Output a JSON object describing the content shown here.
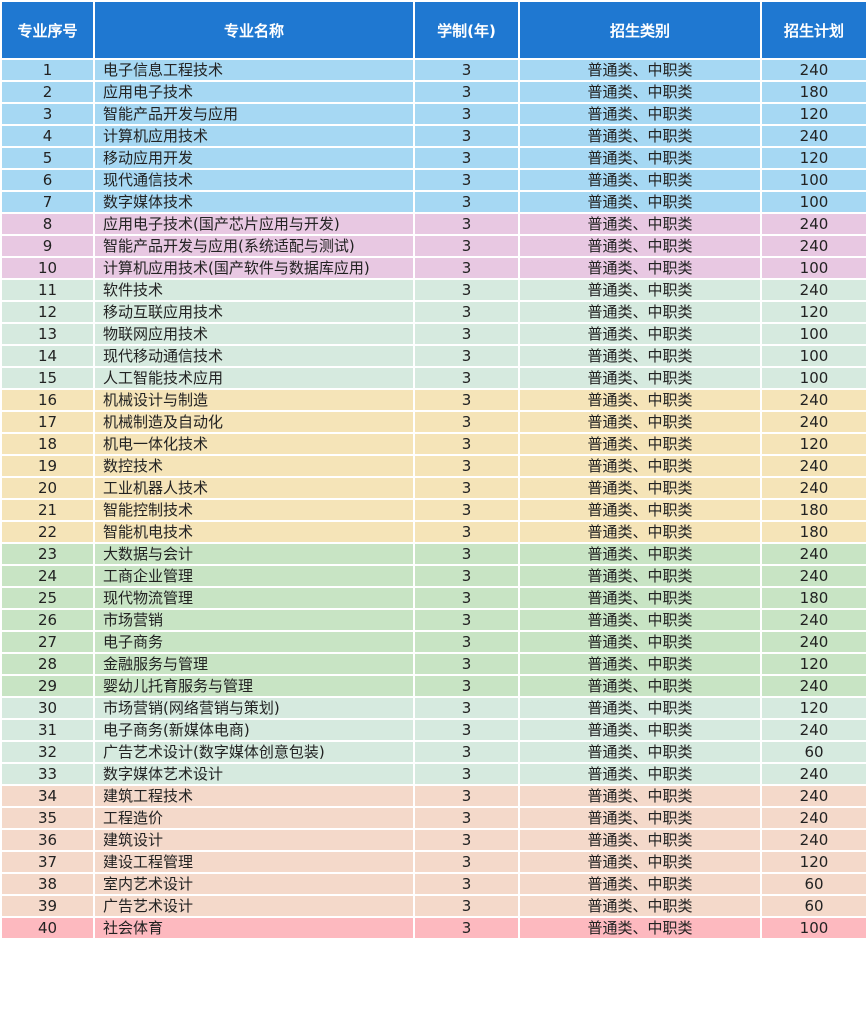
{
  "headers": [
    "专业序号",
    "专业名称",
    "学制(年)",
    "招生类别",
    "招生计划"
  ],
  "group_colors": [
    "#a6d8f3",
    "#e8c8e2",
    "#d6eadf",
    "#f5e4b8",
    "#c8e4c4",
    "#d6eadf",
    "#f4d9ca",
    "#fdb9bf"
  ],
  "rows": [
    [
      "1",
      "电子信息工程技术",
      "3",
      "普通类、中职类",
      "240",
      0
    ],
    [
      "2",
      "应用电子技术",
      "3",
      "普通类、中职类",
      "180",
      0
    ],
    [
      "3",
      "智能产品开发与应用",
      "3",
      "普通类、中职类",
      "120",
      0
    ],
    [
      "4",
      "计算机应用技术",
      "3",
      "普通类、中职类",
      "240",
      0
    ],
    [
      "5",
      "移动应用开发",
      "3",
      "普通类、中职类",
      "120",
      0
    ],
    [
      "6",
      "现代通信技术",
      "3",
      "普通类、中职类",
      "100",
      0
    ],
    [
      "7",
      "数字媒体技术",
      "3",
      "普通类、中职类",
      "100",
      0
    ],
    [
      "8",
      "应用电子技术(国产芯片应用与开发)",
      "3",
      "普通类、中职类",
      "240",
      1
    ],
    [
      "9",
      "智能产品开发与应用(系统适配与测试)",
      "3",
      "普通类、中职类",
      "240",
      1
    ],
    [
      "10",
      "计算机应用技术(国产软件与数据库应用)",
      "3",
      "普通类、中职类",
      "100",
      1
    ],
    [
      "11",
      "软件技术",
      "3",
      "普通类、中职类",
      "240",
      2
    ],
    [
      "12",
      "移动互联应用技术",
      "3",
      "普通类、中职类",
      "120",
      2
    ],
    [
      "13",
      "物联网应用技术",
      "3",
      "普通类、中职类",
      "100",
      2
    ],
    [
      "14",
      "现代移动通信技术",
      "3",
      "普通类、中职类",
      "100",
      2
    ],
    [
      "15",
      "人工智能技术应用",
      "3",
      "普通类、中职类",
      "100",
      2
    ],
    [
      "16",
      "机械设计与制造",
      "3",
      "普通类、中职类",
      "240",
      3
    ],
    [
      "17",
      "机械制造及自动化",
      "3",
      "普通类、中职类",
      "240",
      3
    ],
    [
      "18",
      "机电一体化技术",
      "3",
      "普通类、中职类",
      "120",
      3
    ],
    [
      "19",
      "数控技术",
      "3",
      "普通类、中职类",
      "240",
      3
    ],
    [
      "20",
      "工业机器人技术",
      "3",
      "普通类、中职类",
      "240",
      3
    ],
    [
      "21",
      "智能控制技术",
      "3",
      "普通类、中职类",
      "180",
      3
    ],
    [
      "22",
      "智能机电技术",
      "3",
      "普通类、中职类",
      "180",
      3
    ],
    [
      "23",
      "大数据与会计",
      "3",
      "普通类、中职类",
      "240",
      4
    ],
    [
      "24",
      "工商企业管理",
      "3",
      "普通类、中职类",
      "240",
      4
    ],
    [
      "25",
      "现代物流管理",
      "3",
      "普通类、中职类",
      "180",
      4
    ],
    [
      "26",
      "市场营销",
      "3",
      "普通类、中职类",
      "240",
      4
    ],
    [
      "27",
      "电子商务",
      "3",
      "普通类、中职类",
      "240",
      4
    ],
    [
      "28",
      "金融服务与管理",
      "3",
      "普通类、中职类",
      "120",
      4
    ],
    [
      "29",
      "婴幼儿托育服务与管理",
      "3",
      "普通类、中职类",
      "240",
      4
    ],
    [
      "30",
      "市场营销(网络营销与策划)",
      "3",
      "普通类、中职类",
      "120",
      5
    ],
    [
      "31",
      "电子商务(新媒体电商)",
      "3",
      "普通类、中职类",
      "240",
      5
    ],
    [
      "32",
      "广告艺术设计(数字媒体创意包装)",
      "3",
      "普通类、中职类",
      "60",
      5
    ],
    [
      "33",
      "数字媒体艺术设计",
      "3",
      "普通类、中职类",
      "240",
      5
    ],
    [
      "34",
      "建筑工程技术",
      "3",
      "普通类、中职类",
      "240",
      6
    ],
    [
      "35",
      "工程造价",
      "3",
      "普通类、中职类",
      "240",
      6
    ],
    [
      "36",
      "建筑设计",
      "3",
      "普通类、中职类",
      "240",
      6
    ],
    [
      "37",
      "建设工程管理",
      "3",
      "普通类、中职类",
      "120",
      6
    ],
    [
      "38",
      "室内艺术设计",
      "3",
      "普通类、中职类",
      "60",
      6
    ],
    [
      "39",
      "广告艺术设计",
      "3",
      "普通类、中职类",
      "60",
      6
    ],
    [
      "40",
      "社会体育",
      "3",
      "普通类、中职类",
      "100",
      7
    ]
  ]
}
